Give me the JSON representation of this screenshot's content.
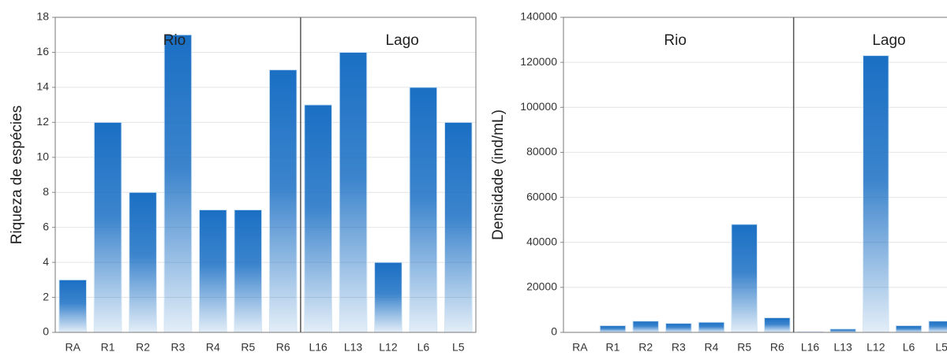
{
  "chart_data": [
    {
      "type": "bar",
      "ylabel": "Riqueza de espécies",
      "annotations": [
        "Rio",
        "Lago"
      ],
      "categories": [
        "RA",
        "R1",
        "R2",
        "R3",
        "R4",
        "R5",
        "R6",
        "L16",
        "L13",
        "L12",
        "L6",
        "L5"
      ],
      "values": [
        3,
        12,
        8,
        17,
        7,
        7,
        15,
        13,
        16,
        4,
        14,
        12
      ],
      "color": "#1a6fc4",
      "ylim": [
        0,
        18
      ],
      "yticks": [
        0,
        2,
        4,
        6,
        8,
        10,
        12,
        14,
        16,
        18
      ],
      "grid": true
    },
    {
      "type": "bar",
      "ylabel": "Densidade (ind/mL)",
      "annotations": [
        "Rio",
        "Lago"
      ],
      "categories": [
        "RA",
        "R1",
        "R2",
        "R3",
        "R4",
        "R5",
        "R6",
        "L16",
        "L13",
        "L12",
        "L6",
        "L5"
      ],
      "values": [
        0,
        3000,
        5000,
        4000,
        4500,
        48000,
        6500,
        300,
        1500,
        123000,
        3000,
        5000
      ],
      "color": "#1a6fc4",
      "ylim": [
        0,
        140000
      ],
      "yticks": [
        0,
        20000,
        40000,
        60000,
        80000,
        100000,
        120000,
        140000
      ],
      "grid": true
    }
  ]
}
